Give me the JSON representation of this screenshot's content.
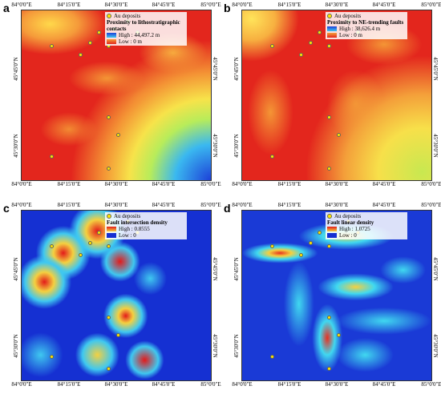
{
  "x_labels": [
    "84°0'0\"E",
    "84°15'0\"E",
    "84°30'0\"E",
    "84°45'0\"E",
    "85°0'0\"E"
  ],
  "y_labels": [
    "45°45'0\"N",
    "45°30'0\"N"
  ],
  "panels": [
    {
      "label": "a",
      "deposits": "Au deposits",
      "title": "Proximity to lithostratigraphic contacts",
      "high": "High : 44,497.2 m",
      "low": "Low : 0 m"
    },
    {
      "label": "b",
      "deposits": "Au deposits",
      "title": "Proximity to NE-trending faults",
      "high": "High : 38,626.4 m",
      "low": "Low : 0 m"
    },
    {
      "label": "c",
      "deposits": "Au deposits",
      "title": "Fault intersection density",
      "high": "High : 0.8555",
      "low": "Low : 0"
    },
    {
      "label": "d",
      "deposits": "Au deposits",
      "title": "Fault linear density",
      "high": "High : 1.0725",
      "low": "Low : 0"
    }
  ]
}
